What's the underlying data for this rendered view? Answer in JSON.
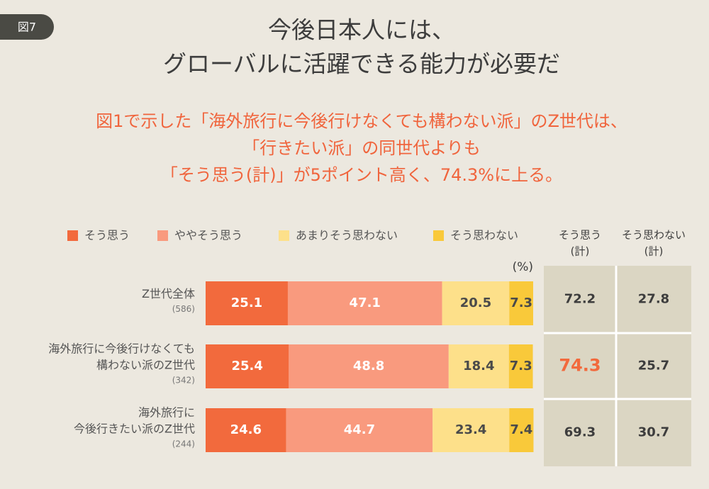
{
  "chart_data": {
    "type": "stacked-bar",
    "figure_label": "図7",
    "title": [
      "今後日本人には、",
      "グローバルに活躍できる能力が必要だ"
    ],
    "subtitle": [
      "図1で示した「海外旅行に今後行けなくても構わない派」のZ世代は、",
      "「行きたい派」の同世代よりも",
      "「そう思う(計)」が5ポイント高く、74.3%に上る。"
    ],
    "unit": "(%)",
    "categories": [
      [
        "Z世代全体"
      ],
      [
        "海外旅行に今後行けなくても",
        "構わない派のZ世代"
      ],
      [
        "海外旅行に",
        "今後行きたい派のZ世代"
      ]
    ],
    "category_notes": [
      "(586)",
      "(342)",
      "(244)"
    ],
    "xlim": [
      0,
      100
    ],
    "series": [
      {
        "name": "そう思う",
        "color": "#f26a3d",
        "label_color": "#ffffff",
        "values": [
          25.1,
          25.4,
          24.6
        ]
      },
      {
        "name": "ややそう思う",
        "color": "#f99a7e",
        "label_color": "#ffffff",
        "values": [
          47.1,
          48.8,
          44.7
        ]
      },
      {
        "name": "あまりそう思わない",
        "color": "#fde08a",
        "label_color": "#4a4a4a",
        "values": [
          20.5,
          18.4,
          23.4
        ]
      },
      {
        "name": "そう思わない",
        "color": "#f9c93a",
        "label_color": "#4a4a4a",
        "values": [
          7.3,
          7.3,
          7.4
        ]
      }
    ],
    "table": {
      "columns": [
        [
          "そう思う",
          "(計)"
        ],
        [
          "そう思わない",
          "(計)"
        ]
      ],
      "rows": [
        [
          72.2,
          27.8
        ],
        [
          74.3,
          25.7
        ],
        [
          69.3,
          30.7
        ]
      ],
      "highlight": {
        "row": 1,
        "col": 0,
        "color": "#f26a3d"
      }
    }
  }
}
